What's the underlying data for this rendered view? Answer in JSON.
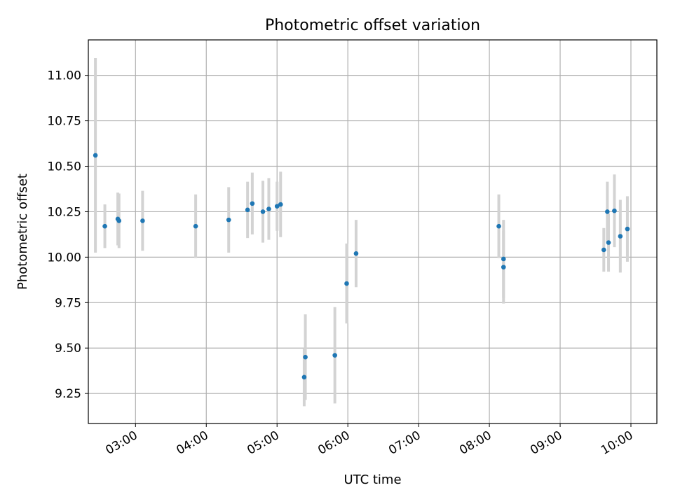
{
  "chart_data": {
    "type": "scatter",
    "title": "Photometric offset variation",
    "xlabel": "UTC time",
    "ylabel": "Photometric offset",
    "x_axis_kind": "time",
    "xlim": [
      "02:20",
      "10:22"
    ],
    "ylim": [
      9.085,
      11.195
    ],
    "x_ticks": [
      "03:00",
      "04:00",
      "05:00",
      "06:00",
      "07:00",
      "08:00",
      "09:00",
      "10:00"
    ],
    "y_ticks": [
      "9.25",
      "9.50",
      "9.75",
      "10.00",
      "10.25",
      "10.50",
      "10.75",
      "11.00"
    ],
    "grid": true,
    "legend": "none",
    "point_color": "#1f77b4",
    "errorbar_color": "#d3d3d3",
    "points": [
      {
        "x": "02:26",
        "y": 10.56,
        "err": 0.535
      },
      {
        "x": "02:34",
        "y": 10.17,
        "err": 0.12
      },
      {
        "x": "02:45",
        "y": 10.21,
        "err": 0.145
      },
      {
        "x": "02:46",
        "y": 10.2,
        "err": 0.15
      },
      {
        "x": "03:06",
        "y": 10.2,
        "err": 0.165
      },
      {
        "x": "03:51",
        "y": 10.17,
        "err": 0.175
      },
      {
        "x": "04:19",
        "y": 10.205,
        "err": 0.18
      },
      {
        "x": "04:35",
        "y": 10.26,
        "err": 0.155
      },
      {
        "x": "04:39",
        "y": 10.295,
        "err": 0.17
      },
      {
        "x": "04:48",
        "y": 10.25,
        "err": 0.17
      },
      {
        "x": "04:53",
        "y": 10.265,
        "err": 0.17
      },
      {
        "x": "05:00",
        "y": 10.28,
        "err": 0.135
      },
      {
        "x": "05:03",
        "y": 10.29,
        "err": 0.18
      },
      {
        "x": "05:23",
        "y": 9.34,
        "err": 0.16
      },
      {
        "x": "05:24",
        "y": 9.45,
        "err": 0.235
      },
      {
        "x": "05:49",
        "y": 9.46,
        "err": 0.265
      },
      {
        "x": "05:59",
        "y": 9.855,
        "err": 0.22
      },
      {
        "x": "06:07",
        "y": 10.02,
        "err": 0.185
      },
      {
        "x": "08:08",
        "y": 10.17,
        "err": 0.175
      },
      {
        "x": "08:12",
        "y": 9.99,
        "err": 0.215
      },
      {
        "x": "08:12",
        "y": 9.945,
        "err": 0.2
      },
      {
        "x": "09:37",
        "y": 10.04,
        "err": 0.12
      },
      {
        "x": "09:40",
        "y": 10.25,
        "err": 0.165
      },
      {
        "x": "09:41",
        "y": 10.08,
        "err": 0.16
      },
      {
        "x": "09:46",
        "y": 10.255,
        "err": 0.2
      },
      {
        "x": "09:51",
        "y": 10.115,
        "err": 0.2
      },
      {
        "x": "09:57",
        "y": 10.155,
        "err": 0.18
      }
    ]
  }
}
